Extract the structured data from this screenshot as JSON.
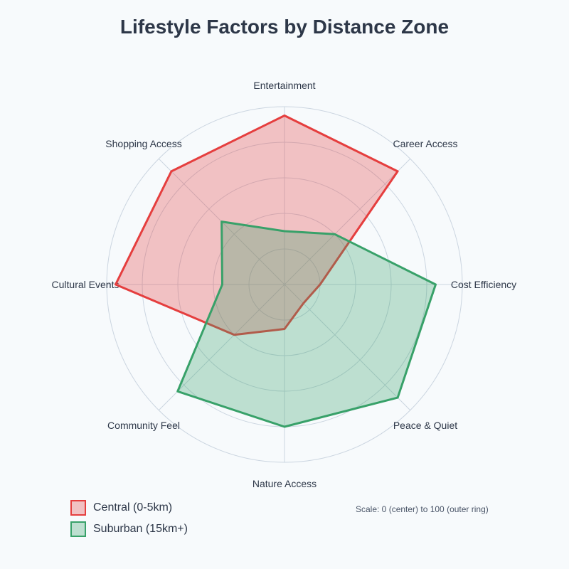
{
  "chart_data": {
    "type": "radar",
    "title": "Lifestyle Factors by Distance Zone",
    "axes": [
      "Entertainment",
      "Career Access",
      "Cost Efficiency",
      "Peace & Quiet",
      "Nature Access",
      "Community Feel",
      "Cultural Events",
      "Shopping Access"
    ],
    "range": [
      0,
      100
    ],
    "rings": [
      20,
      40,
      60,
      80,
      100
    ],
    "grid": true,
    "legend_position": "bottom-left",
    "series": [
      {
        "name": "Central (0-5km)",
        "color": "#e53e3e",
        "values": [
          95,
          90,
          20,
          15,
          25,
          40,
          95,
          90
        ]
      },
      {
        "name": "Suburban (15km+)",
        "color": "#38a169",
        "values": [
          30,
          40,
          85,
          90,
          80,
          85,
          35,
          50
        ]
      }
    ],
    "note": "Scale: 0 (center) to 100 (outer ring)"
  }
}
